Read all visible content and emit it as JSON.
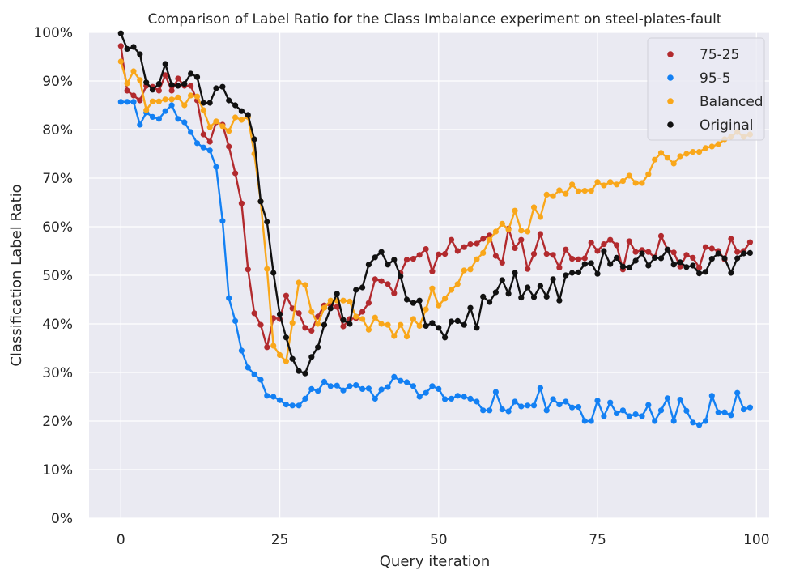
{
  "chart_data": {
    "type": "line",
    "title": "Comparison of Label Ratio for the Class Imbalance experiment on steel-plates-fault",
    "xlabel": "Query iteration",
    "ylabel": "Classification Label Ratio",
    "xlim": [
      -5,
      102
    ],
    "ylim": [
      0,
      1
    ],
    "xticks": [
      0,
      25,
      50,
      75,
      100
    ],
    "xtick_labels": [
      "0",
      "25",
      "50",
      "75",
      "100"
    ],
    "yticks": [
      0,
      0.1,
      0.2,
      0.3,
      0.4,
      0.5,
      0.6,
      0.7,
      0.8,
      0.9,
      1.0
    ],
    "ytick_labels": [
      "0%",
      "10%",
      "20%",
      "30%",
      "40%",
      "50%",
      "60%",
      "70%",
      "80%",
      "90%",
      "100%"
    ],
    "grid": true,
    "legend_position": "top-right",
    "x": [
      0,
      1,
      2,
      3,
      4,
      5,
      6,
      7,
      8,
      9,
      10,
      11,
      12,
      13,
      14,
      15,
      16,
      17,
      18,
      19,
      20,
      21,
      22,
      23,
      24,
      25,
      26,
      27,
      28,
      29,
      30,
      31,
      32,
      33,
      34,
      35,
      36,
      37,
      38,
      39,
      40,
      41,
      42,
      43,
      44,
      45,
      46,
      47,
      48,
      49,
      50,
      51,
      52,
      53,
      54,
      55,
      56,
      57,
      58,
      59,
      60,
      61,
      62,
      63,
      64,
      65,
      66,
      67,
      68,
      69,
      70,
      71,
      72,
      73,
      74,
      75,
      76,
      77,
      78,
      79,
      80,
      81,
      82,
      83,
      84,
      85,
      86,
      87,
      88,
      89,
      90,
      91,
      92,
      93,
      94,
      95,
      96,
      97,
      98,
      99
    ],
    "series": [
      {
        "name": "75-25",
        "color": "#b22a2e",
        "values": [
          0.972,
          0.88,
          0.87,
          0.86,
          0.89,
          0.888,
          0.88,
          0.912,
          0.88,
          0.905,
          0.89,
          0.89,
          0.86,
          0.79,
          0.775,
          0.815,
          0.81,
          0.765,
          0.71,
          0.648,
          0.512,
          0.422,
          0.398,
          0.352,
          0.412,
          0.41,
          0.458,
          0.432,
          0.422,
          0.392,
          0.386,
          0.415,
          0.438,
          0.44,
          0.435,
          0.395,
          0.41,
          0.412,
          0.425,
          0.443,
          0.492,
          0.488,
          0.482,
          0.463,
          0.505,
          0.532,
          0.534,
          0.542,
          0.554,
          0.508,
          0.543,
          0.544,
          0.573,
          0.55,
          0.558,
          0.564,
          0.565,
          0.575,
          0.582,
          0.54,
          0.526,
          0.596,
          0.556,
          0.573,
          0.513,
          0.544,
          0.585,
          0.544,
          0.542,
          0.516,
          0.553,
          0.534,
          0.533,
          0.535,
          0.567,
          0.55,
          0.564,
          0.573,
          0.562,
          0.512,
          0.57,
          0.548,
          0.552,
          0.548,
          0.537,
          0.581,
          0.553,
          0.547,
          0.518,
          0.542,
          0.536,
          0.516,
          0.558,
          0.555,
          0.55,
          0.533,
          0.575,
          0.548,
          0.55,
          0.568
        ]
      },
      {
        "name": "95-5",
        "color": "#1380f3",
        "values": [
          0.857,
          0.857,
          0.857,
          0.81,
          0.835,
          0.826,
          0.822,
          0.838,
          0.85,
          0.822,
          0.815,
          0.795,
          0.772,
          0.763,
          0.757,
          0.723,
          0.612,
          0.453,
          0.406,
          0.345,
          0.31,
          0.296,
          0.285,
          0.252,
          0.25,
          0.243,
          0.234,
          0.232,
          0.232,
          0.246,
          0.266,
          0.262,
          0.281,
          0.272,
          0.273,
          0.263,
          0.272,
          0.274,
          0.266,
          0.267,
          0.246,
          0.265,
          0.27,
          0.291,
          0.283,
          0.28,
          0.272,
          0.25,
          0.258,
          0.272,
          0.266,
          0.245,
          0.246,
          0.252,
          0.25,
          0.246,
          0.24,
          0.222,
          0.222,
          0.26,
          0.224,
          0.22,
          0.24,
          0.23,
          0.232,
          0.232,
          0.268,
          0.222,
          0.245,
          0.234,
          0.24,
          0.228,
          0.229,
          0.2,
          0.2,
          0.242,
          0.21,
          0.238,
          0.216,
          0.222,
          0.21,
          0.214,
          0.21,
          0.233,
          0.2,
          0.222,
          0.247,
          0.2,
          0.244,
          0.221,
          0.197,
          0.192,
          0.2,
          0.252,
          0.218,
          0.218,
          0.212,
          0.258,
          0.224,
          0.228
        ]
      },
      {
        "name": "Balanced",
        "color": "#f9a71a",
        "values": [
          0.94,
          0.895,
          0.92,
          0.902,
          0.84,
          0.858,
          0.858,
          0.862,
          0.862,
          0.866,
          0.85,
          0.87,
          0.868,
          0.84,
          0.805,
          0.817,
          0.807,
          0.797,
          0.825,
          0.82,
          0.826,
          0.75,
          0.652,
          0.513,
          0.355,
          0.336,
          0.323,
          0.402,
          0.485,
          0.48,
          0.425,
          0.4,
          0.433,
          0.448,
          0.448,
          0.448,
          0.446,
          0.415,
          0.41,
          0.388,
          0.413,
          0.4,
          0.398,
          0.375,
          0.398,
          0.374,
          0.41,
          0.396,
          0.43,
          0.473,
          0.438,
          0.452,
          0.47,
          0.482,
          0.51,
          0.512,
          0.533,
          0.546,
          0.573,
          0.59,
          0.606,
          0.594,
          0.633,
          0.592,
          0.59,
          0.64,
          0.62,
          0.666,
          0.663,
          0.675,
          0.668,
          0.687,
          0.673,
          0.674,
          0.674,
          0.692,
          0.685,
          0.692,
          0.687,
          0.694,
          0.705,
          0.69,
          0.69,
          0.708,
          0.738,
          0.752,
          0.742,
          0.73,
          0.745,
          0.75,
          0.754,
          0.754,
          0.762,
          0.765,
          0.77,
          0.78,
          0.785,
          0.795,
          0.785,
          0.79
        ]
      },
      {
        "name": "Original",
        "color": "#111111",
        "values": [
          0.998,
          0.966,
          0.97,
          0.955,
          0.897,
          0.882,
          0.894,
          0.935,
          0.892,
          0.89,
          0.894,
          0.915,
          0.908,
          0.855,
          0.855,
          0.885,
          0.888,
          0.86,
          0.85,
          0.838,
          0.83,
          0.78,
          0.652,
          0.61,
          0.505,
          0.42,
          0.372,
          0.328,
          0.303,
          0.298,
          0.332,
          0.352,
          0.398,
          0.432,
          0.462,
          0.408,
          0.4,
          0.47,
          0.475,
          0.522,
          0.537,
          0.548,
          0.522,
          0.532,
          0.498,
          0.45,
          0.443,
          0.448,
          0.396,
          0.402,
          0.392,
          0.372,
          0.405,
          0.406,
          0.398,
          0.433,
          0.392,
          0.456,
          0.445,
          0.465,
          0.49,
          0.462,
          0.505,
          0.454,
          0.475,
          0.455,
          0.478,
          0.456,
          0.492,
          0.448,
          0.5,
          0.505,
          0.506,
          0.523,
          0.525,
          0.503,
          0.55,
          0.523,
          0.536,
          0.518,
          0.516,
          0.53,
          0.545,
          0.52,
          0.536,
          0.535,
          0.553,
          0.522,
          0.527,
          0.517,
          0.52,
          0.504,
          0.507,
          0.534,
          0.545,
          0.535,
          0.505,
          0.535,
          0.545,
          0.546
        ]
      }
    ]
  }
}
